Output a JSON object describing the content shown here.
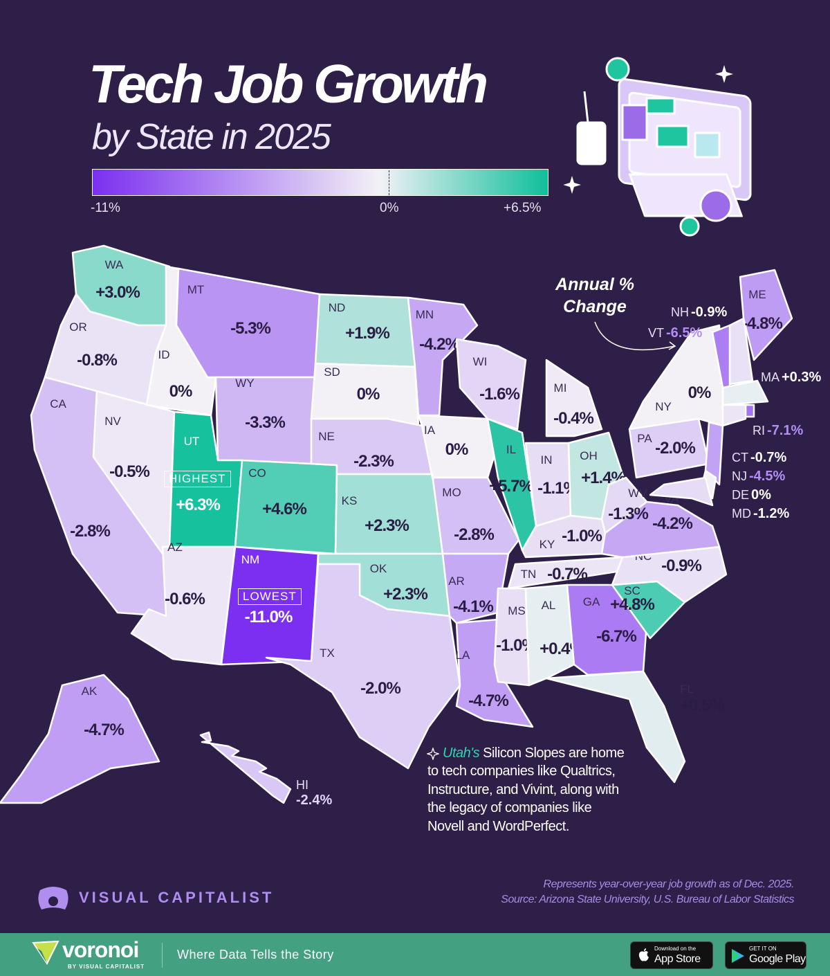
{
  "header": {
    "title": "Tech Job Growth",
    "subtitle": "by State in 2025"
  },
  "legend": {
    "min_label": "-11%",
    "mid_label": "0%",
    "max_label": "+6.5%",
    "min_color": "#7b2ff0",
    "mid_color": "#f3f1f6",
    "max_color": "#0fbf9b"
  },
  "annotation": {
    "line1": "Annual %",
    "line2": "Change"
  },
  "badges": {
    "highest": "HIGHEST",
    "lowest": "LOWEST"
  },
  "states": [
    {
      "abbr": "WA",
      "change": "+3.0%"
    },
    {
      "abbr": "OR",
      "change": "-0.8%"
    },
    {
      "abbr": "CA",
      "change": "-2.8%"
    },
    {
      "abbr": "NV",
      "change": "-0.5%"
    },
    {
      "abbr": "ID",
      "change": "0%"
    },
    {
      "abbr": "MT",
      "change": "-5.3%"
    },
    {
      "abbr": "WY",
      "change": "-3.3%"
    },
    {
      "abbr": "UT",
      "change": "+6.3%"
    },
    {
      "abbr": "CO",
      "change": "+4.6%"
    },
    {
      "abbr": "AZ",
      "change": "-0.6%"
    },
    {
      "abbr": "NM",
      "change": "-11.0%"
    },
    {
      "abbr": "ND",
      "change": "+1.9%"
    },
    {
      "abbr": "SD",
      "change": "0%"
    },
    {
      "abbr": "NE",
      "change": "-2.3%"
    },
    {
      "abbr": "KS",
      "change": "+2.3%"
    },
    {
      "abbr": "OK",
      "change": "+2.3%"
    },
    {
      "abbr": "TX",
      "change": "-2.0%"
    },
    {
      "abbr": "MN",
      "change": "-4.2%"
    },
    {
      "abbr": "IA",
      "change": "0%"
    },
    {
      "abbr": "MO",
      "change": "-2.8%"
    },
    {
      "abbr": "AR",
      "change": "-4.1%"
    },
    {
      "abbr": "LA",
      "change": "-4.7%"
    },
    {
      "abbr": "WI",
      "change": "-1.6%"
    },
    {
      "abbr": "IL",
      "change": "+5.7%"
    },
    {
      "abbr": "MI",
      "change": "-0.4%"
    },
    {
      "abbr": "IN",
      "change": "-1.1%"
    },
    {
      "abbr": "OH",
      "change": "+1.4%"
    },
    {
      "abbr": "KY",
      "change": "-1.0%"
    },
    {
      "abbr": "TN",
      "change": "-0.7%"
    },
    {
      "abbr": "MS",
      "change": "-1.0%"
    },
    {
      "abbr": "AL",
      "change": "+0.4%"
    },
    {
      "abbr": "GA",
      "change": "-6.7%"
    },
    {
      "abbr": "SC",
      "change": "+4.8%"
    },
    {
      "abbr": "NC",
      "change": "-0.9%"
    },
    {
      "abbr": "VA",
      "change": "-4.2%"
    },
    {
      "abbr": "WV",
      "change": "-1.3%"
    },
    {
      "abbr": "PA",
      "change": "-2.0%"
    },
    {
      "abbr": "NY",
      "change": "0%"
    },
    {
      "abbr": "FL",
      "change": "+0.5%"
    },
    {
      "abbr": "ME",
      "change": "-4.8%"
    },
    {
      "abbr": "NH",
      "change": "-0.9%"
    },
    {
      "abbr": "VT",
      "change": "-6.5%"
    },
    {
      "abbr": "MA",
      "change": "+0.3%"
    },
    {
      "abbr": "RI",
      "change": "-7.1%"
    },
    {
      "abbr": "CT",
      "change": "-0.7%"
    },
    {
      "abbr": "NJ",
      "change": "-4.5%"
    },
    {
      "abbr": "DE",
      "change": "0%"
    },
    {
      "abbr": "MD",
      "change": "-1.2%"
    },
    {
      "abbr": "AK",
      "change": "-4.7%"
    },
    {
      "abbr": "HI",
      "change": "-2.4%"
    }
  ],
  "callout": {
    "highlight": "Utah's",
    "text": "Silicon Slopes are home to tech companies like Qualtrics, Instructure, and Vivint, along with the legacy of companies like Novell and WordPerfect."
  },
  "branding": {
    "publisher": "VISUAL CAPITALIST",
    "note": "Represents year-over-year job growth as of Dec. 2025.",
    "source": "Source: Arizona State University, U.S. Bureau of Labor Statistics"
  },
  "footer": {
    "brand": "voronoi",
    "brand_sub": "BY VISUAL CAPITALIST",
    "tagline": "Where Data Tells the Story",
    "app_store_small": "Download on the",
    "app_store": "App Store",
    "google_play_small": "GET IT ON",
    "google_play": "Google Play",
    "footer_color": "#43a080"
  }
}
